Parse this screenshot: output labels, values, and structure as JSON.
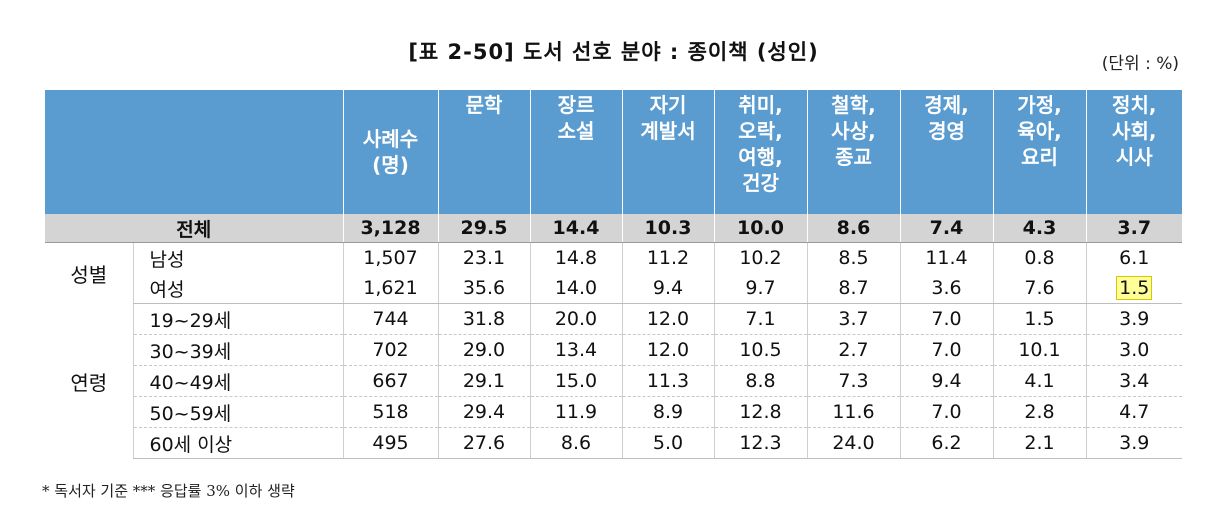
{
  "title": "[표 2-50] 도서 선호 분야 : 종이책 (성인)",
  "unit": "(단위 : %)",
  "headers": [
    "사례수\n(명)",
    "문학",
    "장르\n소설",
    "자기\n계발서",
    "취미,\n오락,\n여행,\n건강",
    "철학,\n사상,\n종교",
    "경제,\n경영",
    "가정,\n육아,\n요리",
    "정치,\n사회,\n시사"
  ],
  "total": {
    "label": "전체",
    "values": [
      "3,128",
      "29.5",
      "14.4",
      "10.3",
      "10.0",
      "8.6",
      "7.4",
      "4.3",
      "3.7"
    ]
  },
  "groups": [
    {
      "name": "성별",
      "rows": [
        {
          "label": "남성",
          "values": [
            "1,507",
            "23.1",
            "14.8",
            "11.2",
            "10.2",
            "8.5",
            "11.4",
            "0.8",
            "6.1"
          ]
        },
        {
          "label": "여성",
          "values": [
            "1,621",
            "35.6",
            "14.0",
            "9.4",
            "9.7",
            "8.7",
            "3.6",
            "7.6",
            "1.5"
          ]
        }
      ]
    },
    {
      "name": "연령",
      "rows": [
        {
          "label": "19~29세",
          "values": [
            "744",
            "31.8",
            "20.0",
            "12.0",
            "7.1",
            "3.7",
            "7.0",
            "1.5",
            "3.9"
          ]
        },
        {
          "label": "30~39세",
          "values": [
            "702",
            "29.0",
            "13.4",
            "12.0",
            "10.5",
            "2.7",
            "7.0",
            "10.1",
            "3.0"
          ]
        },
        {
          "label": "40~49세",
          "values": [
            "667",
            "29.1",
            "15.0",
            "11.3",
            "8.8",
            "7.3",
            "9.4",
            "4.1",
            "3.4"
          ]
        },
        {
          "label": "50~59세",
          "values": [
            "518",
            "29.4",
            "11.9",
            "8.9",
            "12.8",
            "11.6",
            "7.0",
            "2.8",
            "4.7"
          ]
        },
        {
          "label": "60세 이상",
          "values": [
            "495",
            "27.6",
            "8.6",
            "5.0",
            "12.3",
            "24.0",
            "6.2",
            "2.1",
            "3.9"
          ]
        }
      ]
    }
  ],
  "note": "* 독서자 기준 *** 응답률 3% 이하 생략"
}
